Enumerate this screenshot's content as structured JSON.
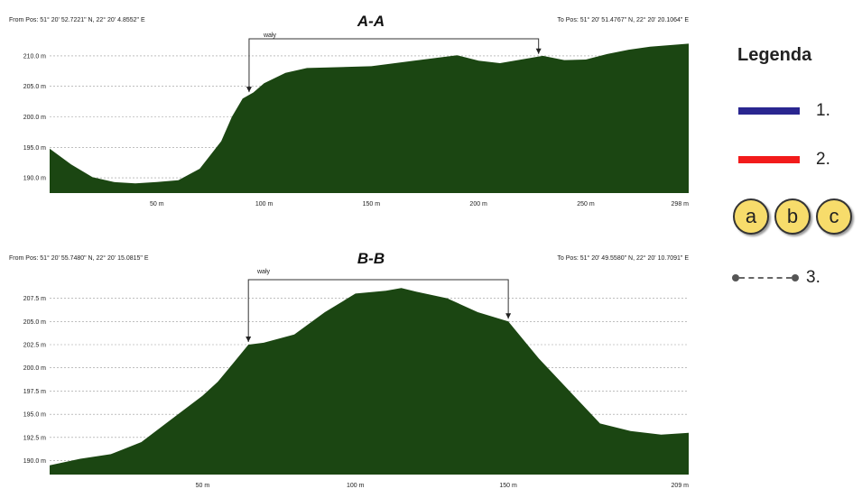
{
  "chart_data": [
    {
      "type": "area",
      "title": "A-A",
      "from_pos": "From Pos: 51° 20' 52.7221\" N, 22° 20' 4.8552\" E",
      "to_pos": "To Pos: 51° 20' 51.4767\" N, 22° 20' 20.1064\" E",
      "annotation": "wały",
      "annotation_x": [
        93,
        228
      ],
      "x_max": 298,
      "ylim": [
        187.5,
        212.5
      ],
      "y_ticks": [
        190,
        195,
        200,
        205,
        210
      ],
      "y_tick_labels": [
        "190.0 m",
        "195.0 m",
        "200.0 m",
        "205.0 m",
        "210.0 m"
      ],
      "x_ticks": [
        50,
        100,
        150,
        200,
        250,
        298
      ],
      "x_tick_labels": [
        "50 m",
        "100 m",
        "150 m",
        "200 m",
        "250 m",
        "298 m"
      ],
      "grid": true,
      "x": [
        0,
        10,
        20,
        30,
        40,
        50,
        60,
        70,
        80,
        85,
        90,
        95,
        100,
        110,
        120,
        130,
        150,
        170,
        190,
        200,
        210,
        230,
        240,
        250,
        260,
        270,
        280,
        298
      ],
      "values": [
        194.8,
        192.2,
        190.1,
        189.3,
        189.1,
        189.3,
        189.6,
        191.5,
        196,
        200,
        203,
        204,
        205.5,
        207.2,
        208,
        208.1,
        208.3,
        209.2,
        210.1,
        209.2,
        208.8,
        210,
        209.3,
        209.4,
        210.3,
        211,
        211.5,
        212
      ]
    },
    {
      "type": "area",
      "title": "B-B",
      "from_pos": "From Pos: 51° 20' 55.7480\" N, 22° 20' 15.0815\" E",
      "to_pos": "To Pos: 51° 20' 49.5580\" N, 22° 20' 10.7091\" E",
      "annotation": "wały",
      "annotation_x": [
        65,
        150
      ],
      "x_max": 209,
      "ylim": [
        188.5,
        209.5
      ],
      "y_ticks": [
        190,
        192.5,
        195,
        197.5,
        200,
        202.5,
        205,
        207.5
      ],
      "y_tick_labels": [
        "190.0 m",
        "192.5 m",
        "195.0 m",
        "197.5 m",
        "200.0 m",
        "202.5 m",
        "205.0 m",
        "207.5 m"
      ],
      "x_ticks": [
        50,
        100,
        150,
        209
      ],
      "x_tick_labels": [
        "50 m",
        "100 m",
        "150 m",
        "209 m"
      ],
      "grid": true,
      "x": [
        0,
        10,
        20,
        30,
        40,
        50,
        55,
        60,
        65,
        70,
        80,
        90,
        100,
        110,
        115,
        120,
        130,
        140,
        150,
        160,
        170,
        180,
        190,
        200,
        209
      ],
      "values": [
        189.5,
        190.2,
        190.7,
        192,
        194.5,
        197,
        198.5,
        200.5,
        202.5,
        202.7,
        203.6,
        206,
        208,
        208.3,
        208.6,
        208.2,
        207.5,
        206,
        205,
        201,
        197.5,
        194,
        193.2,
        192.8,
        193
      ]
    }
  ],
  "legend": {
    "title": "Legenda",
    "items": [
      {
        "label": "1.",
        "color": "#2a2690"
      },
      {
        "label": "2.",
        "color": "#f21b1b"
      },
      {
        "label": "3."
      }
    ],
    "circles": [
      "a",
      "b",
      "c"
    ]
  },
  "colors": {
    "fill": "#1b4612",
    "grid": "#999999"
  }
}
